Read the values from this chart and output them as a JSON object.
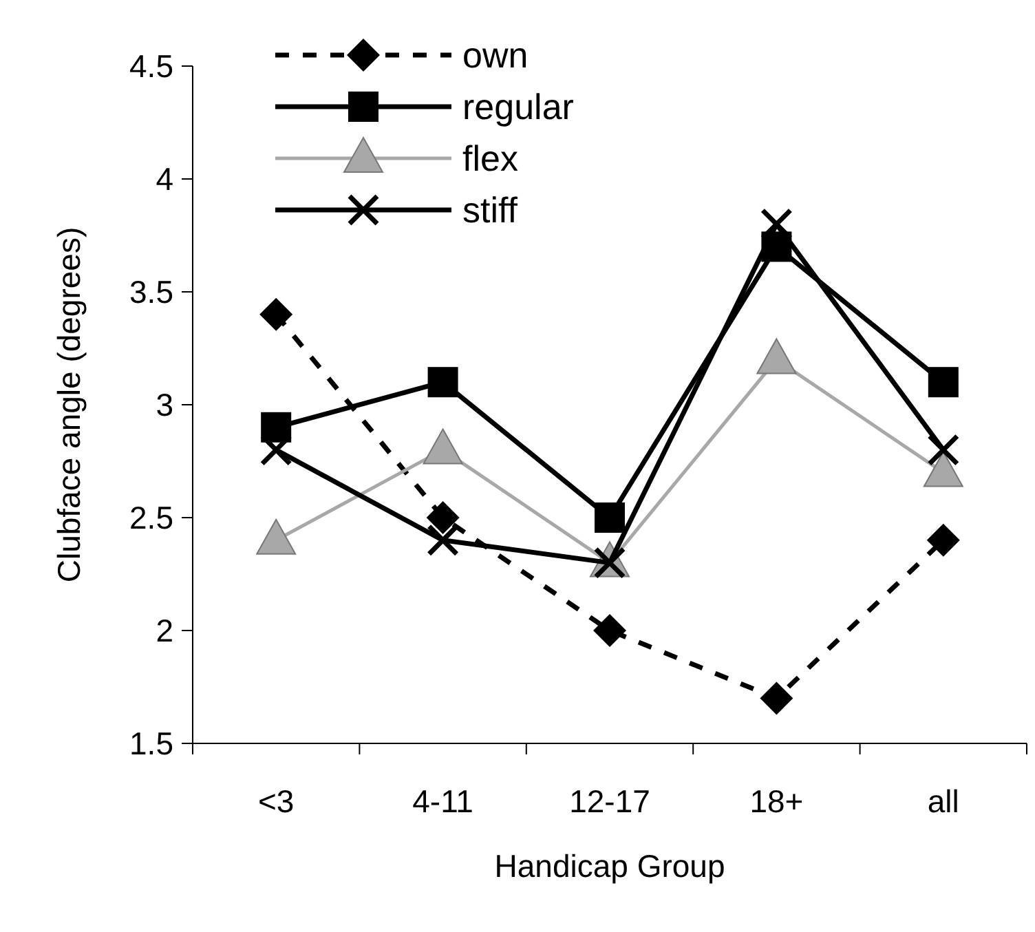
{
  "chart_data": {
    "type": "line",
    "xlabel": "Handicap Group",
    "ylabel": "Clubface angle (degrees)",
    "categories": [
      "<3",
      "4-11",
      "12-17",
      "18+",
      "all"
    ],
    "series": [
      {
        "name": "own",
        "color": "#000000",
        "marker": "diamond",
        "line_style": "dashed",
        "values": [
          3.4,
          2.5,
          2.0,
          1.7,
          2.4
        ]
      },
      {
        "name": "regular",
        "color": "#000000",
        "marker": "square",
        "line_style": "solid",
        "values": [
          2.9,
          3.1,
          2.5,
          3.7,
          3.1
        ]
      },
      {
        "name": "flex",
        "color": "#a8a8a8",
        "marker": "triangle",
        "line_style": "solid",
        "values": [
          2.4,
          2.8,
          2.3,
          3.2,
          2.7
        ]
      },
      {
        "name": "stiff",
        "color": "#000000",
        "marker": "cross",
        "line_style": "solid",
        "values": [
          2.8,
          2.4,
          2.3,
          3.8,
          2.8
        ]
      }
    ],
    "ylim": [
      1.5,
      4.5
    ],
    "yticks": [
      1.5,
      2,
      2.5,
      3,
      3.5,
      4,
      4.5
    ],
    "legend": "top left"
  }
}
